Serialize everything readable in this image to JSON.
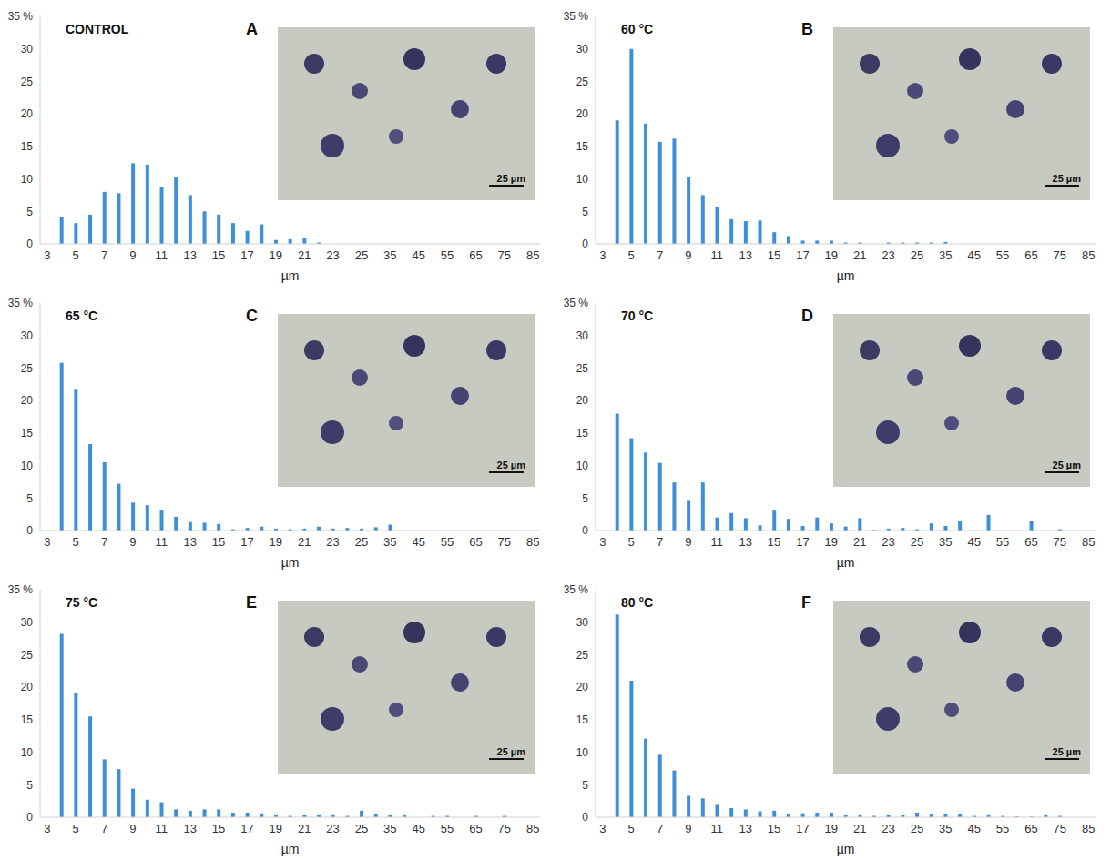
{
  "chart_data": [
    {
      "type": "bar",
      "panel_label": "A",
      "title": "CONTROL",
      "xlabel": "µm",
      "annotations": [
        "25 µm"
      ],
      "categories": [
        "3",
        null,
        "5",
        null,
        "7",
        null,
        "9",
        null,
        "11",
        null,
        "13",
        null,
        "15",
        null,
        "17",
        null,
        "19",
        null,
        "21",
        null,
        "23",
        null,
        "25",
        null,
        "35",
        null,
        "45",
        null,
        "55",
        null,
        "65",
        null,
        "75",
        null,
        "85"
      ],
      "values": [
        0,
        4.2,
        3.2,
        4.5,
        8.0,
        7.8,
        12.4,
        12.2,
        8.7,
        10.2,
        7.5,
        5.0,
        4.5,
        3.2,
        2.0,
        3.0,
        0.6,
        0.7,
        0.9,
        0.2,
        0,
        0,
        0,
        0,
        0,
        0,
        0,
        0,
        0,
        0,
        0,
        0,
        0,
        0,
        0
      ],
      "color": "#3d8fd9",
      "ylim": [
        0,
        35
      ],
      "yticks": [
        0,
        5,
        10,
        15,
        20,
        25,
        30,
        {
          "value": 35,
          "label": "35 %"
        }
      ],
      "grid": false
    },
    {
      "type": "bar",
      "panel_label": "B",
      "title": "60 °C",
      "xlabel": "µm",
      "annotations": [
        "25 µm"
      ],
      "categories": [
        "3",
        null,
        "5",
        null,
        "7",
        null,
        "9",
        null,
        "11",
        null,
        "13",
        null,
        "15",
        null,
        "17",
        null,
        "19",
        null,
        "21",
        null,
        "23",
        null,
        "25",
        null,
        "35",
        null,
        "45",
        null,
        "55",
        null,
        "65",
        null,
        "75",
        null,
        "85"
      ],
      "values": [
        0,
        19.0,
        30.0,
        18.5,
        15.7,
        16.2,
        10.3,
        7.5,
        5.7,
        3.8,
        3.5,
        3.6,
        1.8,
        1.2,
        0.5,
        0.5,
        0.5,
        0.2,
        0.2,
        0,
        0.2,
        0.2,
        0.2,
        0.2,
        0.3,
        0,
        0,
        0,
        0,
        0,
        0,
        0,
        0,
        0,
        0
      ],
      "color": "#3d8fd9",
      "ylim": [
        0,
        35
      ],
      "yticks": [
        0,
        5,
        10,
        15,
        20,
        25,
        30,
        {
          "value": 35,
          "label": "35 %"
        }
      ],
      "grid": false
    },
    {
      "type": "bar",
      "panel_label": "C",
      "title": "65 °C",
      "xlabel": "µm",
      "annotations": [
        "25 µm"
      ],
      "categories": [
        "3",
        null,
        "5",
        null,
        "7",
        null,
        "9",
        null,
        "11",
        null,
        "13",
        null,
        "15",
        null,
        "17",
        null,
        "19",
        null,
        "21",
        null,
        "23",
        null,
        "25",
        null,
        "35",
        null,
        "45",
        null,
        "55",
        null,
        "65",
        null,
        "75",
        null,
        "85"
      ],
      "values": [
        0,
        25.8,
        21.8,
        13.3,
        10.5,
        7.2,
        4.3,
        3.9,
        3.2,
        2.1,
        1.3,
        1.2,
        1.0,
        0.2,
        0.4,
        0.6,
        0.3,
        0.2,
        0.3,
        0.6,
        0.3,
        0.4,
        0.3,
        0.5,
        0.9,
        0,
        0,
        0,
        0,
        0,
        0,
        0,
        0,
        0,
        0
      ],
      "color": "#3d8fd9",
      "ylim": [
        0,
        35
      ],
      "yticks": [
        0,
        5,
        10,
        15,
        20,
        25,
        30,
        {
          "value": 35,
          "label": "35 %"
        }
      ],
      "grid": false
    },
    {
      "type": "bar",
      "panel_label": "D",
      "title": "70 °C",
      "xlabel": "µm",
      "annotations": [
        "25 µm"
      ],
      "categories": [
        "3",
        null,
        "5",
        null,
        "7",
        null,
        "9",
        null,
        "11",
        null,
        "13",
        null,
        "15",
        null,
        "17",
        null,
        "19",
        null,
        "21",
        null,
        "23",
        null,
        "25",
        null,
        "35",
        null,
        "45",
        null,
        "55",
        null,
        "65",
        null,
        "75",
        null,
        "85"
      ],
      "values": [
        0,
        18.0,
        14.2,
        12.0,
        10.4,
        7.4,
        4.7,
        7.4,
        2.0,
        2.7,
        1.9,
        0.8,
        3.2,
        1.8,
        0.7,
        2.0,
        1.1,
        0.6,
        1.9,
        0.1,
        0.3,
        0.4,
        0.2,
        1.1,
        0.7,
        1.5,
        0,
        2.4,
        0,
        0,
        1.4,
        0,
        0.2,
        0,
        0
      ],
      "color": "#3d8fd9",
      "ylim": [
        0,
        35
      ],
      "yticks": [
        0,
        5,
        10,
        15,
        20,
        25,
        30,
        {
          "value": 35,
          "label": "35 %"
        }
      ],
      "grid": false
    },
    {
      "type": "bar",
      "panel_label": "E",
      "title": "75 °C",
      "xlabel": "µm",
      "annotations": [
        "25 µm"
      ],
      "categories": [
        "3",
        null,
        "5",
        null,
        "7",
        null,
        "9",
        null,
        "11",
        null,
        "13",
        null,
        "15",
        null,
        "17",
        null,
        "19",
        null,
        "21",
        null,
        "23",
        null,
        "25",
        null,
        "35",
        null,
        "45",
        null,
        "55",
        null,
        "65",
        null,
        "75",
        null,
        "85"
      ],
      "values": [
        0,
        28.2,
        19.1,
        15.5,
        8.9,
        7.4,
        4.4,
        2.7,
        2.3,
        1.2,
        1.0,
        1.2,
        1.2,
        0.7,
        0.7,
        0.6,
        0.3,
        0.2,
        0.3,
        0.3,
        0.3,
        0.2,
        1.0,
        0.5,
        0.3,
        0.3,
        0,
        0.2,
        0.2,
        0,
        0.2,
        0,
        0.2,
        0,
        0
      ],
      "color": "#3d8fd9",
      "ylim": [
        0,
        35
      ],
      "yticks": [
        0,
        5,
        10,
        15,
        20,
        25,
        30,
        {
          "value": 35,
          "label": "35 %"
        }
      ],
      "grid": false
    },
    {
      "type": "bar",
      "panel_label": "F",
      "title": "80 °C",
      "xlabel": "µm",
      "annotations": [
        "25 µm"
      ],
      "categories": [
        "3",
        null,
        "5",
        null,
        "7",
        null,
        "9",
        null,
        "11",
        null,
        "13",
        null,
        "15",
        null,
        "17",
        null,
        "19",
        null,
        "21",
        null,
        "23",
        null,
        "25",
        null,
        "35",
        null,
        "45",
        null,
        "55",
        null,
        "65",
        null,
        "75",
        null,
        "85"
      ],
      "values": [
        0,
        31.2,
        21.0,
        12.1,
        9.6,
        7.2,
        3.3,
        2.9,
        1.9,
        1.4,
        1.2,
        0.9,
        1.0,
        0.5,
        0.6,
        0.7,
        0.7,
        0.3,
        0.3,
        0.2,
        0.3,
        0.3,
        0.7,
        0.4,
        0.5,
        0.5,
        0.2,
        0.3,
        0.2,
        0.1,
        0.1,
        0.3,
        0.2,
        0,
        0
      ],
      "color": "#3d8fd9",
      "ylim": [
        0,
        35
      ],
      "yticks": [
        0,
        5,
        10,
        15,
        20,
        25,
        30,
        {
          "value": 35,
          "label": "35 %"
        }
      ],
      "grid": false
    }
  ]
}
